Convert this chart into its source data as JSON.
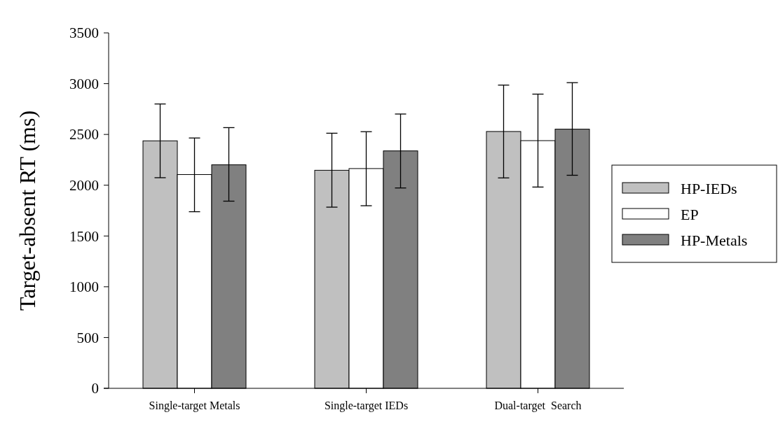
{
  "chart_data": {
    "type": "bar",
    "ylabel": "Target-absent RT (ms)",
    "categories": [
      "Single-target Metals",
      "Single-target IEDs",
      "Dual-target  Search"
    ],
    "series": [
      {
        "name": "HP-IEDs",
        "color": "#c0c0c0",
        "values": [
          2437,
          2147,
          2529
        ],
        "errors": [
          [
            2074,
            2800
          ],
          [
            1784,
            2512
          ],
          [
            2072,
            2986
          ]
        ]
      },
      {
        "name": "EP",
        "color": "#ffffff",
        "values": [
          2105,
          2164,
          2439
        ],
        "errors": [
          [
            1739,
            2465
          ],
          [
            1798,
            2527
          ],
          [
            1982,
            2897
          ]
        ]
      },
      {
        "name": "HP-Metals",
        "color": "#808080",
        "values": [
          2201,
          2338,
          2552
        ],
        "errors": [
          [
            1843,
            2567
          ],
          [
            1973,
            2701
          ],
          [
            2098,
            3010
          ]
        ]
      }
    ],
    "ylim": [
      0,
      3500
    ],
    "yticks": [
      0,
      500,
      1000,
      1500,
      2000,
      2500,
      3000,
      3500
    ],
    "grid": false,
    "legend": "right"
  }
}
